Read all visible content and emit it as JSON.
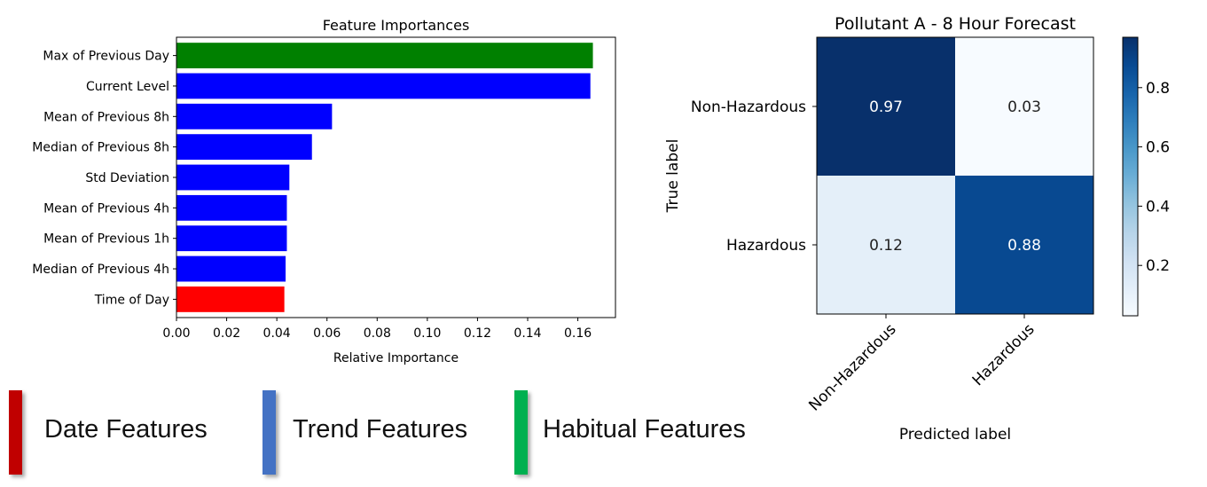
{
  "chart_data": [
    {
      "type": "bar",
      "orientation": "horizontal",
      "title": "Feature Importances",
      "xlabel": "Relative Importance",
      "ylabel": "",
      "xlim": [
        0,
        0.175
      ],
      "xticks": [
        "0.00",
        "0.02",
        "0.04",
        "0.06",
        "0.08",
        "0.10",
        "0.12",
        "0.14",
        "0.16"
      ],
      "categories": [
        "Max of Previous Day",
        "Current Level",
        "Mean of Previous 8h",
        "Median of Previous 8h",
        "Std Deviation",
        "Mean of Previous 4h",
        "Mean of Previous 1h",
        "Median of Previous 4h",
        "Time of Day"
      ],
      "values": [
        0.166,
        0.165,
        0.062,
        0.054,
        0.045,
        0.044,
        0.044,
        0.0435,
        0.043
      ],
      "bar_colors": [
        "#008000",
        "#0000ff",
        "#0000ff",
        "#0000ff",
        "#0000ff",
        "#0000ff",
        "#0000ff",
        "#0000ff",
        "#ff0000"
      ],
      "grid": false
    },
    {
      "type": "heatmap",
      "title": "Pollutant A - 8 Hour Forecast",
      "xlabel": "Predicted label",
      "ylabel": "True label",
      "x_categories": [
        "Non-Hazardous",
        "Hazardous"
      ],
      "y_categories": [
        "Non-Hazardous",
        "Hazardous"
      ],
      "values": [
        [
          0.97,
          0.03
        ],
        [
          0.12,
          0.88
        ]
      ],
      "value_labels": [
        [
          "0.97",
          "0.03"
        ],
        [
          "0.12",
          "0.88"
        ]
      ],
      "colormap": "Blues",
      "colorbar_range": [
        0.03,
        0.97
      ],
      "colorbar_ticks": [
        "0.2",
        "0.4",
        "0.6",
        "0.8"
      ]
    }
  ],
  "legend": {
    "items": [
      {
        "label": "Date Features",
        "color": "#c00000"
      },
      {
        "label": "Trend Features",
        "color": "#4472c4"
      },
      {
        "label": "Habitual Features",
        "color": "#00b050"
      }
    ]
  }
}
